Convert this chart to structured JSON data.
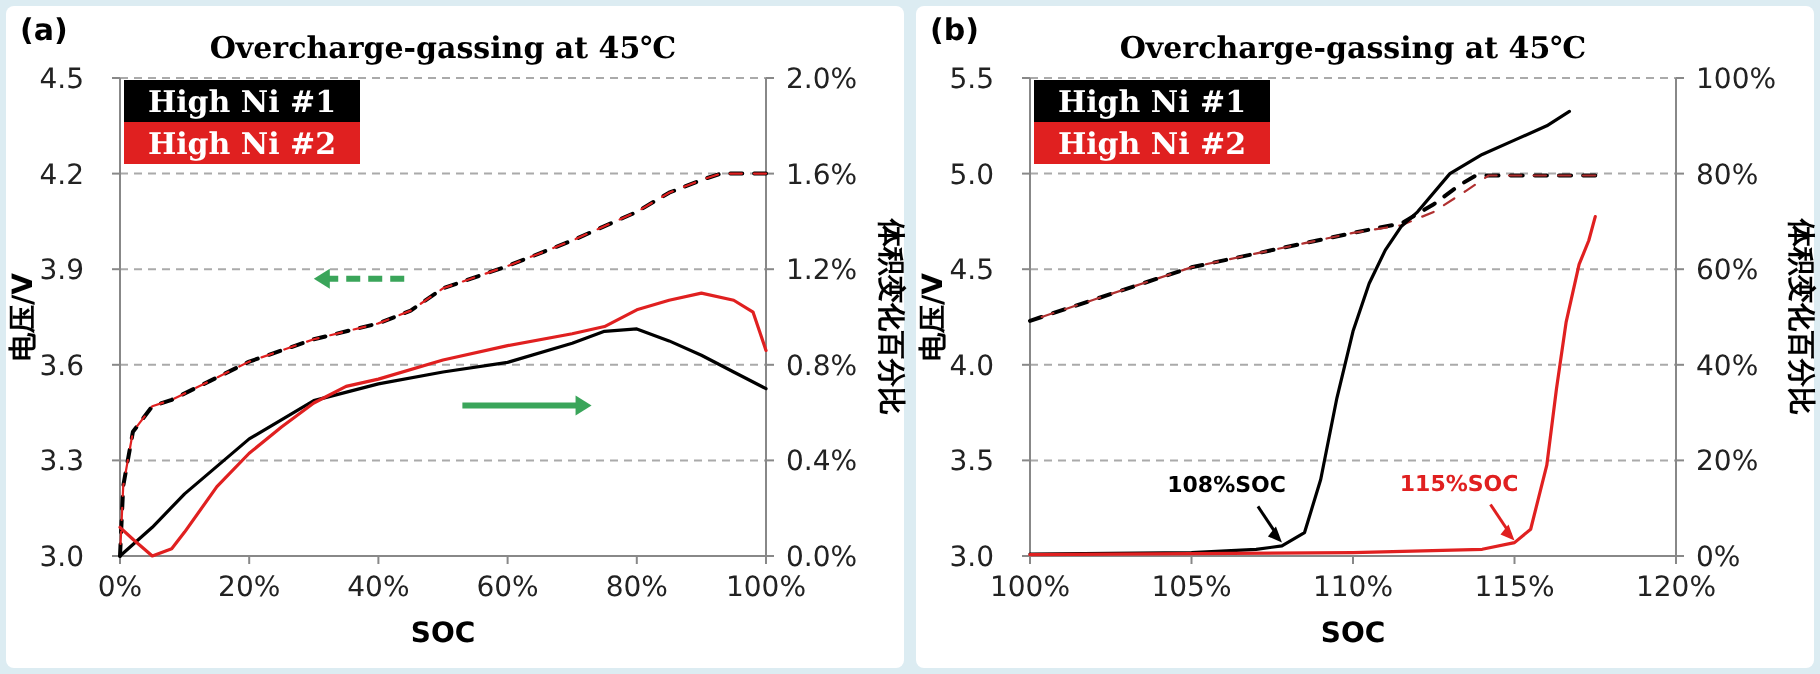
{
  "chart_data": [
    {
      "type": "line",
      "title": "Overcharge-gassing at 45℃",
      "xlabel": "SOC",
      "ylabel": "电压/V",
      "y2label": "体积变化百分比",
      "annotations": [
        "(a)"
      ],
      "xlim": [
        0,
        100
      ],
      "xticks": [
        {
          "value": 0,
          "label": "0%"
        },
        {
          "value": 20,
          "label": "20%"
        },
        {
          "value": 40,
          "label": "40%"
        },
        {
          "value": 60,
          "label": "60%"
        },
        {
          "value": 80,
          "label": "80%"
        },
        {
          "value": 100,
          "label": "100%"
        }
      ],
      "ylim": [
        3.0,
        4.5
      ],
      "yticks": [
        {
          "value": 3.0,
          "label": "3.0"
        },
        {
          "value": 3.3,
          "label": "3.3"
        },
        {
          "value": 3.6,
          "label": "3.6"
        },
        {
          "value": 3.9,
          "label": "3.9"
        },
        {
          "value": 4.2,
          "label": "4.2"
        },
        {
          "value": 4.5,
          "label": "4.5"
        }
      ],
      "y2lim": [
        0,
        2.0
      ],
      "y2ticks": [
        {
          "value": 0,
          "label": "0.0%"
        },
        {
          "value": 0.4,
          "label": "0.4%"
        },
        {
          "value": 0.8,
          "label": "0.8%"
        },
        {
          "value": 1.2,
          "label": "1.2%"
        },
        {
          "value": 1.6,
          "label": "1.6%"
        },
        {
          "value": 2.0,
          "label": "2.0%"
        }
      ],
      "grid": "y",
      "legend": "top left",
      "series": [
        {
          "color": "#000000",
          "line_style": "dashed",
          "axis": "y",
          "x": [
            0,
            0.5,
            2,
            5,
            8,
            20,
            30,
            40,
            45,
            50,
            60,
            70,
            80,
            85,
            90,
            93,
            100
          ],
          "values": [
            3.0,
            3.22,
            3.39,
            3.47,
            3.49,
            3.61,
            3.68,
            3.73,
            3.77,
            3.84,
            3.91,
            3.99,
            4.08,
            4.14,
            4.18,
            4.2,
            4.2
          ]
        },
        {
          "color": "#e02020",
          "line_style": "dashed",
          "axis": "y",
          "x": [
            0,
            0.5,
            2,
            5,
            8,
            20,
            30,
            40,
            45,
            50,
            60,
            70,
            80,
            85,
            90,
            93,
            100
          ],
          "values": [
            3.0,
            3.22,
            3.39,
            3.47,
            3.49,
            3.61,
            3.68,
            3.73,
            3.77,
            3.84,
            3.91,
            3.99,
            4.08,
            4.14,
            4.18,
            4.2,
            4.2
          ]
        },
        {
          "name": "High Ni #1",
          "color": "#000000",
          "line_style": "solid",
          "axis": "y2",
          "x": [
            0,
            5,
            10,
            20,
            30,
            40,
            50,
            60,
            70,
            75,
            80,
            85,
            90,
            95,
            100
          ],
          "values": [
            0.0,
            0.12,
            0.26,
            0.49,
            0.65,
            0.72,
            0.77,
            0.81,
            0.89,
            0.94,
            0.95,
            0.9,
            0.84,
            0.77,
            0.7
          ]
        },
        {
          "name": "High Ni #2",
          "color": "#e02020",
          "line_style": "solid",
          "axis": "y2",
          "x": [
            0,
            2,
            5,
            8,
            10,
            15,
            20,
            25,
            30,
            35,
            40,
            50,
            60,
            70,
            75,
            80,
            85,
            90,
            95,
            98,
            100
          ],
          "values": [
            0.12,
            0.07,
            0.0,
            0.03,
            0.1,
            0.29,
            0.43,
            0.54,
            0.64,
            0.71,
            0.74,
            0.82,
            0.88,
            0.93,
            0.96,
            1.03,
            1.07,
            1.1,
            1.07,
            1.02,
            0.86
          ]
        }
      ]
    },
    {
      "type": "line",
      "title": "Overcharge-gassing at 45℃",
      "xlabel": "SOC",
      "ylabel": "电压/V",
      "y2label": "体积变化百分比",
      "annotations": [
        "(b)",
        {
          "text": "108%SOC",
          "x": 107.8,
          "y": 3.05
        },
        {
          "text": "115%SOC",
          "x": 115,
          "y": 3.06
        }
      ],
      "xlim": [
        100,
        120
      ],
      "xticks": [
        {
          "value": 100,
          "label": "100%"
        },
        {
          "value": 105,
          "label": "105%"
        },
        {
          "value": 110,
          "label": "110%"
        },
        {
          "value": 115,
          "label": "115%"
        },
        {
          "value": 120,
          "label": "120%"
        }
      ],
      "ylim": [
        3.0,
        5.5
      ],
      "yticks": [
        {
          "value": 3.0,
          "label": "3.0"
        },
        {
          "value": 3.5,
          "label": "3.5"
        },
        {
          "value": 4.0,
          "label": "4.0"
        },
        {
          "value": 4.5,
          "label": "4.5"
        },
        {
          "value": 5.0,
          "label": "5.0"
        },
        {
          "value": 5.5,
          "label": "5.5"
        }
      ],
      "y2lim": [
        0,
        100
      ],
      "y2ticks": [
        {
          "value": 0,
          "label": "0%"
        },
        {
          "value": 20,
          "label": "20%"
        },
        {
          "value": 40,
          "label": "40%"
        },
        {
          "value": 60,
          "label": "60%"
        },
        {
          "value": 80,
          "label": "80%"
        },
        {
          "value": 100,
          "label": "100%"
        }
      ],
      "grid": "y",
      "legend": "top left",
      "series": [
        {
          "color": "#000000",
          "line_style": "dashed",
          "axis": "y",
          "x": [
            100,
            105,
            110,
            111.5,
            112.5,
            113.3,
            113.8,
            117.5
          ],
          "values": [
            4.23,
            4.51,
            4.69,
            4.74,
            4.84,
            4.94,
            4.99,
            4.99
          ]
        },
        {
          "color": "#b03030",
          "line_style": "dashed",
          "axis": "y",
          "x": [
            100,
            105,
            110,
            111.5,
            112.5,
            113.5,
            114.2,
            117.5
          ],
          "values": [
            4.23,
            4.51,
            4.69,
            4.73,
            4.8,
            4.91,
            4.99,
            4.99
          ]
        },
        {
          "name": "High Ni #1",
          "color": "#000000",
          "line_style": "solid",
          "axis": "y2",
          "x": [
            100,
            105,
            107,
            107.8,
            108.5,
            109,
            109.5,
            110,
            110.5,
            111,
            111.5,
            112,
            113,
            114,
            115,
            116,
            116.7
          ],
          "values": [
            0.4,
            0.7,
            1.4,
            2.1,
            4.9,
            16,
            33,
            47,
            57,
            64,
            69,
            72,
            80,
            84,
            87,
            90,
            93
          ]
        },
        {
          "name": "High Ni #2",
          "color": "#e02020",
          "line_style": "solid",
          "axis": "y2",
          "x": [
            100,
            110,
            114,
            115,
            115.5,
            116,
            116.3,
            116.6,
            117,
            117.3,
            117.5
          ],
          "values": [
            0.3,
            0.7,
            1.4,
            2.8,
            5.6,
            19,
            35,
            49,
            61,
            66,
            71
          ]
        }
      ]
    }
  ]
}
